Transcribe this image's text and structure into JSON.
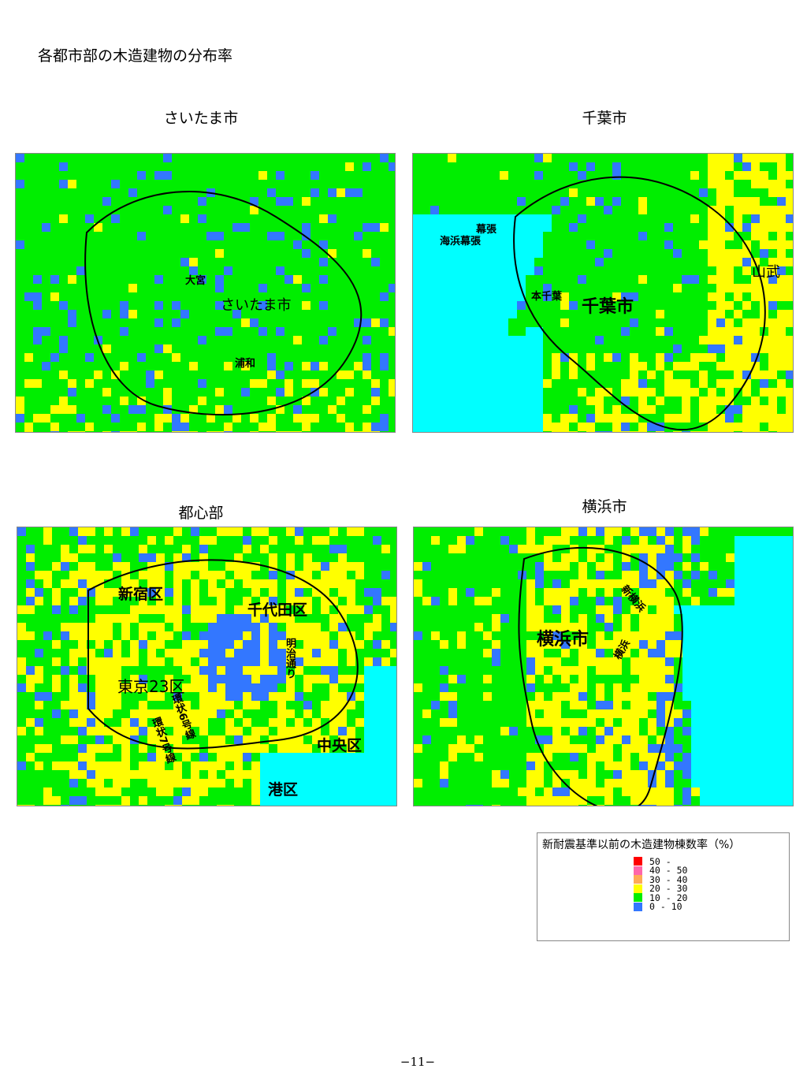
{
  "title": "各都市部の木造建物の分布率",
  "maps": [
    {
      "caption": "さいたま市",
      "labels": [
        "さいたま市",
        "大宮",
        "浦和"
      ]
    },
    {
      "caption": "千葉市",
      "labels": [
        "千葉市",
        "幕張",
        "海浜幕張",
        "本千葉",
        "山武"
      ]
    },
    {
      "caption": "都心部",
      "labels": [
        "新宿区",
        "千代田区",
        "東京23区",
        "中央区",
        "港区",
        "明治通り",
        "環状6号線",
        "環状7号線"
      ]
    },
    {
      "caption": "横浜市",
      "labels": [
        "横浜市",
        "新横浜",
        "横浜"
      ]
    }
  ],
  "legend": {
    "title": "新耐震基準以前の木造建物棟数率（%）",
    "items": [
      {
        "label": "50 -",
        "color": "#ff0000"
      },
      {
        "label": "40 - 50",
        "color": "#ff66aa"
      },
      {
        "label": "30 - 40",
        "color": "#ffaa55"
      },
      {
        "label": "20 - 30",
        "color": "#ffff00"
      },
      {
        "label": "10 - 20",
        "color": "#00ee00"
      },
      {
        "label": "0 - 10",
        "color": "#3377ff"
      }
    ]
  },
  "page_number": "−11−"
}
